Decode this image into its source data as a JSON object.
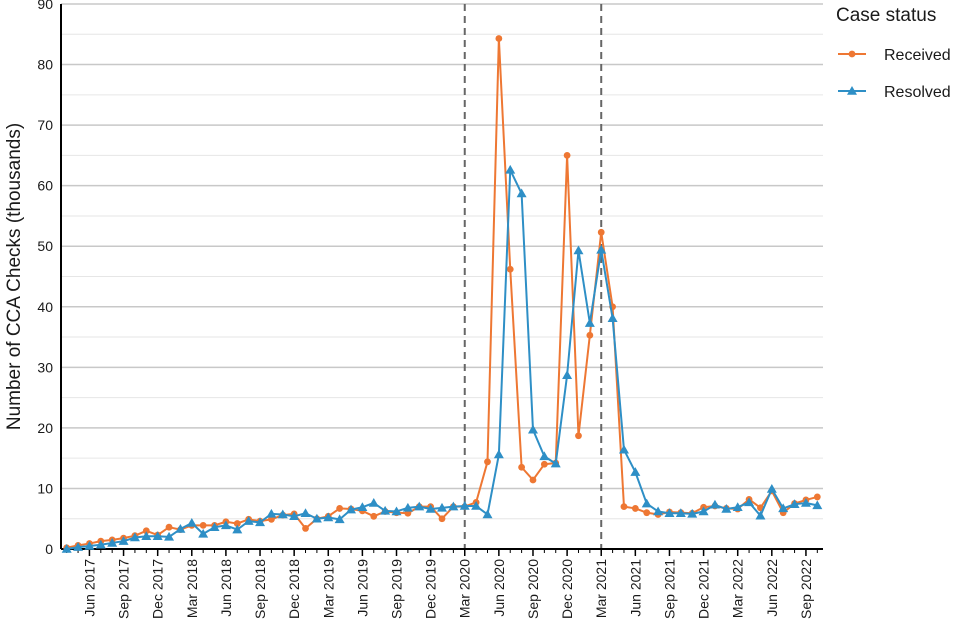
{
  "chart_data": {
    "type": "line",
    "ylabel": "Number of CCA Checks (thousands)",
    "ylim": [
      0,
      90
    ],
    "yticks": [
      0,
      10,
      20,
      30,
      40,
      50,
      60,
      70,
      80,
      90
    ],
    "x_start_month": "Apr 2017",
    "x_tick_labels": [
      "Jun 2017",
      "Sep 2017",
      "Dec 2017",
      "Mar 2018",
      "Jun 2018",
      "Sep 2018",
      "Dec 2018",
      "Mar 2019",
      "Jun 2019",
      "Sep 2019",
      "Dec 2019",
      "Mar 2020",
      "Jun 2020",
      "Sep 2020",
      "Dec 2020",
      "Mar 2021",
      "Jun 2021",
      "Sep 2021",
      "Dec 2021",
      "Mar 2022",
      "Jun 2022",
      "Sep 2022"
    ],
    "reference_lines": [
      "Mar 2020",
      "Mar 2021"
    ],
    "legend": {
      "title": "Case status",
      "position": "right"
    },
    "grid": true,
    "series": [
      {
        "name": "Received",
        "color": "#EE7733",
        "marker": "circle",
        "values": [
          0.2,
          0.6,
          0.9,
          1.3,
          1.5,
          1.8,
          2.2,
          3.0,
          2.3,
          3.6,
          3.2,
          3.9,
          3.9,
          3.9,
          4.5,
          4.2,
          4.9,
          4.6,
          4.9,
          5.6,
          5.8,
          3.4,
          5.0,
          5.4,
          6.7,
          6.6,
          6.3,
          5.4,
          6.2,
          6.0,
          5.9,
          7.0,
          7.0,
          5.0,
          7.0,
          7.0,
          7.7,
          14.4,
          84.3,
          46.2,
          13.5,
          11.4,
          14.0,
          14.2,
          65.0,
          18.7,
          35.3,
          52.3,
          40.0,
          7.0,
          6.7,
          6.0,
          5.7,
          6.1,
          6.0,
          5.9,
          6.9,
          7.1,
          6.7,
          6.6,
          8.2,
          6.8,
          9.6,
          6.0,
          7.5,
          8.1,
          8.6
        ]
      },
      {
        "name": "Resolved",
        "color": "#2E8FC6",
        "marker": "triangle",
        "values": [
          0.0,
          0.3,
          0.5,
          0.7,
          1.0,
          1.3,
          1.9,
          2.1,
          2.1,
          2.0,
          3.3,
          4.3,
          2.5,
          3.6,
          3.9,
          3.2,
          4.6,
          4.4,
          5.8,
          5.7,
          5.4,
          5.9,
          5.0,
          5.2,
          4.9,
          6.5,
          6.9,
          7.6,
          6.3,
          6.2,
          6.8,
          7.0,
          6.6,
          6.8,
          7.0,
          7.1,
          7.1,
          5.7,
          15.6,
          62.6,
          58.7,
          19.7,
          15.3,
          14.1,
          28.7,
          49.3,
          37.3,
          49.4,
          38.1,
          16.4,
          12.7,
          7.5,
          6.2,
          5.9,
          5.9,
          5.8,
          6.2,
          7.3,
          6.6,
          6.9,
          7.7,
          5.5,
          9.9,
          6.7,
          7.4,
          7.6,
          7.2
        ]
      }
    ]
  }
}
